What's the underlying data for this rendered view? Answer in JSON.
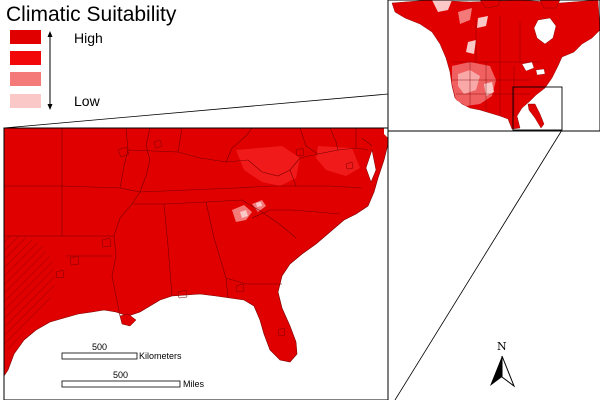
{
  "legend": {
    "title": "Climatic Suitability",
    "high_label": "High",
    "low_label": "Low",
    "swatches": [
      {
        "level": "high",
        "color": "#e00000"
      },
      {
        "level": "medium-high",
        "color": "#f20808"
      },
      {
        "level": "medium-low",
        "color": "#f47a7a"
      },
      {
        "level": "low",
        "color": "#fbc8c8"
      }
    ]
  },
  "scale_bars": {
    "kilometers": {
      "value": "500",
      "unit": "Kilometers"
    },
    "miles": {
      "value": "500",
      "unit": "Miles"
    }
  },
  "north_arrow": {
    "letter": "N"
  },
  "colors": {
    "suitable": "#e00000",
    "highlight": "#f06060",
    "low": "#fbc8c8",
    "boundary": "#7a0000",
    "background": "#ffffff"
  }
}
